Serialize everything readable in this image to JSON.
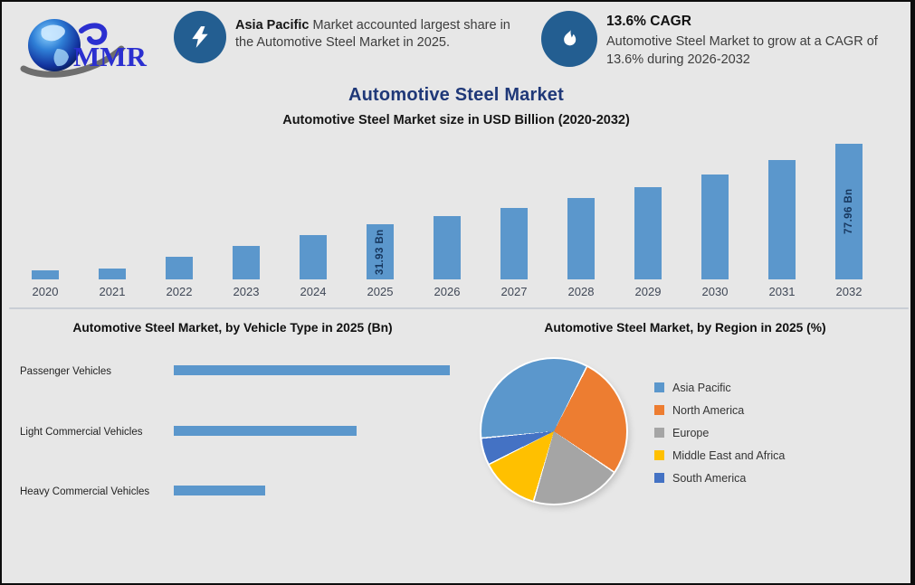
{
  "logo": {
    "text": "MMR"
  },
  "header": {
    "callout1": {
      "icon": "lightning-bolt-icon",
      "highlight": "Asia Pacific",
      "text_after_highlight": " Market accounted largest share in",
      "line2": "the Automotive Steel Market in 2025."
    },
    "callout2": {
      "icon": "growth-flame-icon",
      "heading": "13.6% CAGR",
      "line1": "Automotive Steel Market to grow at a CAGR of",
      "line2": "13.6% during 2026-2032"
    }
  },
  "titles": {
    "main": "Automotive Steel Market",
    "subtitle": "Automotive Steel Market size in USD Billion (2020-2032)"
  },
  "chart_data": [
    {
      "type": "bar",
      "title": "Automotive Steel Market size in USD Billion (2020-2032)",
      "categories": [
        "2020",
        "2021",
        "2022",
        "2023",
        "2024",
        "2025",
        "2026",
        "2027",
        "2028",
        "2029",
        "2030",
        "2031",
        "2032"
      ],
      "values": [
        5.2,
        6.2,
        13.0,
        19.2,
        25.5,
        31.93,
        36.27,
        41.2,
        46.81,
        53.18,
        60.41,
        68.63,
        77.96
      ],
      "bar_labels": {
        "2025": "31.93 Bn",
        "2032": "77.96 Bn"
      },
      "xlabel": "",
      "ylabel": "USD Billion",
      "ylim": [
        0,
        80
      ],
      "grid": false,
      "bar_color": "#5b97cc"
    },
    {
      "type": "bar",
      "orientation": "horizontal",
      "title": "Automotive Steel Market, by Vehicle Type in 2025 (Bn)",
      "categories": [
        "Passenger Vehicles",
        "Light Commercial Vehicles",
        "Heavy Commercial Vehicles"
      ],
      "values": [
        16.0,
        10.6,
        5.3
      ],
      "xlabel": "",
      "ylabel": "",
      "xlim": [
        0,
        16.5
      ],
      "grid": false,
      "bar_color": "#5b97cc"
    },
    {
      "type": "pie",
      "title": "Automotive Steel Market, by Region in 2025 (%)",
      "labels": [
        "Asia Pacific",
        "North America",
        "Europe",
        "Middle East and Africa",
        "South America"
      ],
      "values": [
        34,
        27,
        20,
        13,
        6
      ],
      "colors": [
        "#5b97cc",
        "#ed7d31",
        "#a5a5a5",
        "#ffc000",
        "#4472c4"
      ],
      "start_angle_deg": 264,
      "legend_position": "right"
    }
  ],
  "colors": {
    "background": "#e7e7e7",
    "title_navy": "#1f3878",
    "icon_circle_blue": "#235e91",
    "bar_blue": "#5b97cc",
    "logo_blue": "#2b2fd0",
    "bar_value_text": "#17375e"
  }
}
